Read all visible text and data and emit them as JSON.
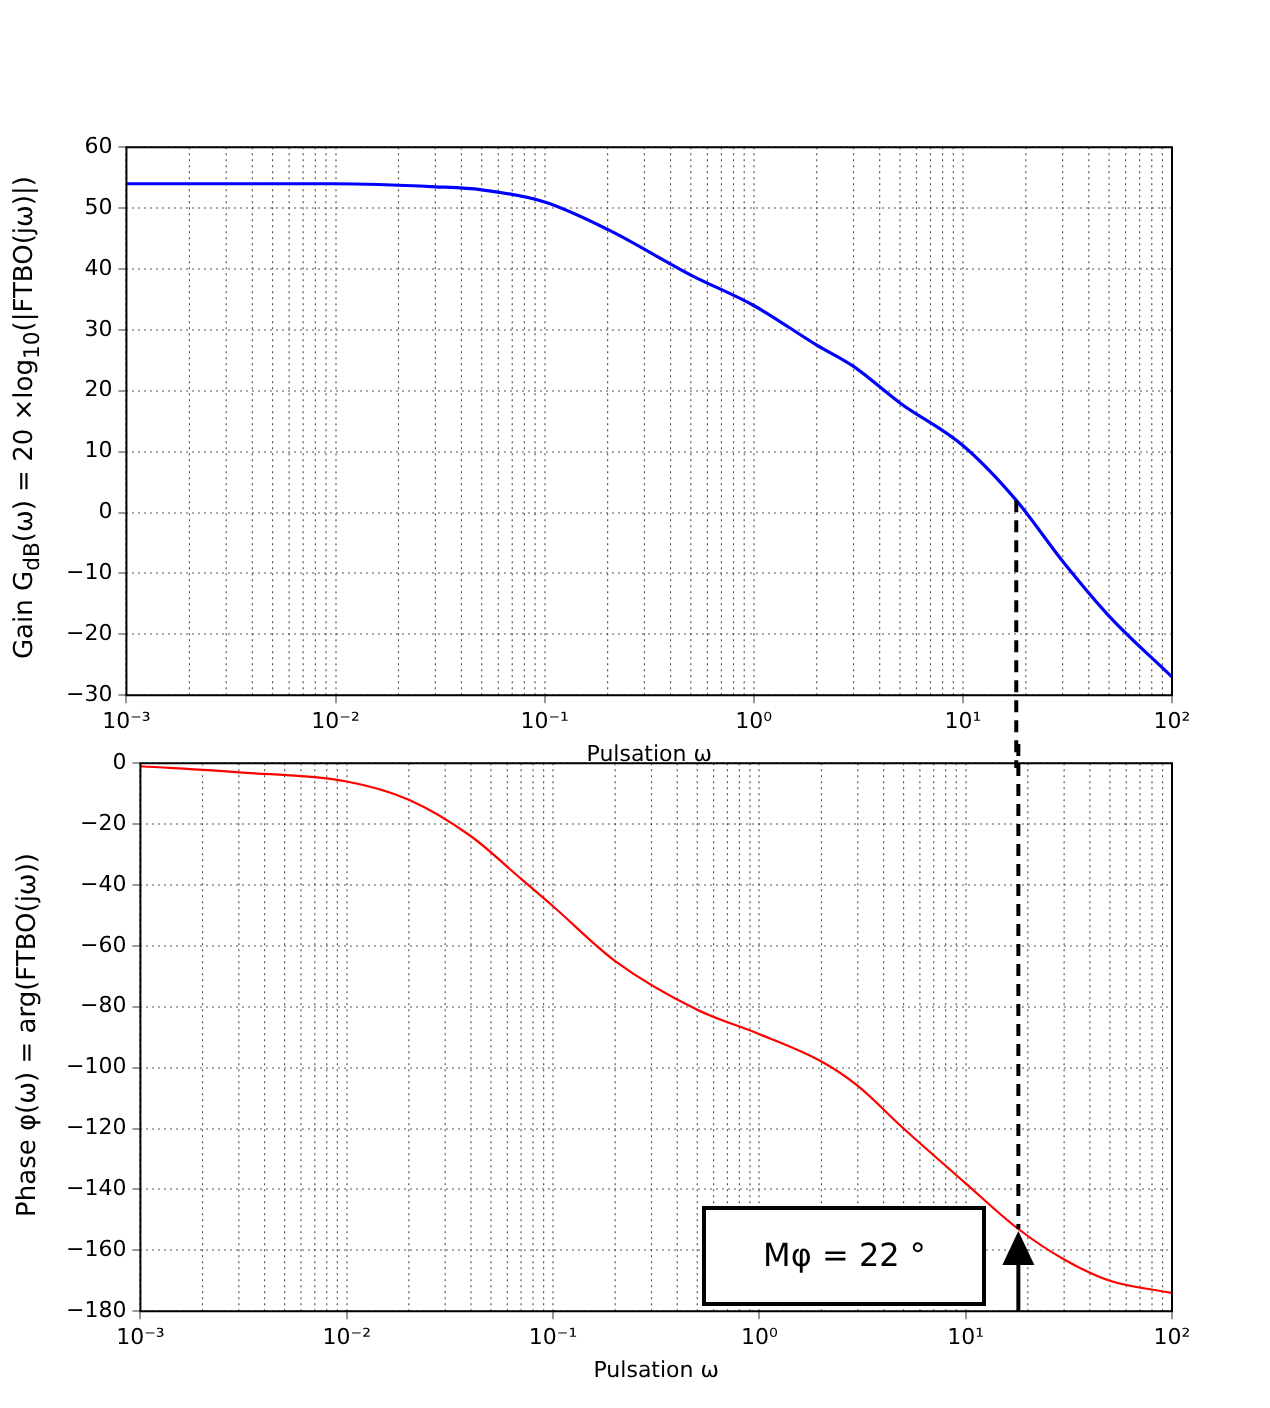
{
  "chart_data": [
    {
      "type": "line",
      "xlabel": "Pulsation ω",
      "ylabel": "Gain G$_{dB}$(ω) = 20 ×log$_{10}$(|FTBO(jω)|)",
      "log": "x",
      "grid": true,
      "x": [
        0.001,
        0.01,
        0.03,
        0.05,
        0.1,
        0.2,
        0.5,
        1,
        2,
        3,
        5,
        10,
        18,
        30,
        50,
        100
      ],
      "series": [
        {
          "color": "#0000ff",
          "values": [
            54,
            54,
            53.5,
            53,
            51,
            46.5,
            39,
            34,
            27.5,
            24,
            18,
            11,
            2,
            -8,
            -17,
            -27
          ]
        }
      ],
      "xlim": [
        0.001,
        100
      ],
      "ylim": [
        -30,
        60
      ],
      "xticks": [
        {
          "value": 0.001,
          "label": "10⁻³"
        },
        {
          "value": 0.01,
          "label": "10⁻²"
        },
        {
          "value": 0.1,
          "label": "10⁻¹"
        },
        {
          "value": 1,
          "label": "10⁰"
        },
        {
          "value": 10,
          "label": "10¹"
        },
        {
          "value": 100,
          "label": "10²"
        }
      ],
      "yticks": [
        -30,
        -20,
        -10,
        0,
        10,
        20,
        30,
        40,
        50,
        60
      ],
      "ref_lines": [
        {
          "axis": "x",
          "value": 18,
          "color": "#000000",
          "line_style": "dashed"
        }
      ]
    },
    {
      "type": "line",
      "xlabel": "Pulsation ω",
      "ylabel": "Phase φ(ω) = arg(FTBO(jω))",
      "log": "x",
      "grid": true,
      "x": [
        0.001,
        0.003,
        0.01,
        0.02,
        0.04,
        0.07,
        0.1,
        0.2,
        0.5,
        1,
        2,
        3,
        5,
        10,
        18,
        30,
        50,
        100
      ],
      "series": [
        {
          "color": "#ff0000",
          "values": [
            -1,
            -3,
            -6,
            -12,
            -24,
            -38,
            -47,
            -65,
            -81,
            -89,
            -98,
            -106,
            -120,
            -138,
            -153,
            -163,
            -170,
            -174
          ]
        }
      ],
      "xlim": [
        0.001,
        100
      ],
      "ylim": [
        -180,
        0
      ],
      "xticks": [
        {
          "value": 0.001,
          "label": "10⁻³"
        },
        {
          "value": 0.01,
          "label": "10⁻²"
        },
        {
          "value": 0.1,
          "label": "10⁻¹"
        },
        {
          "value": 1,
          "label": "10⁰"
        },
        {
          "value": 10,
          "label": "10¹"
        },
        {
          "value": 100,
          "label": "10²"
        }
      ],
      "yticks": [
        -180,
        -160,
        -140,
        -120,
        -100,
        -80,
        -60,
        -40,
        -20,
        0
      ],
      "ref_lines": [
        {
          "axis": "x",
          "value": 18,
          "color": "#000000",
          "line_style": "dashed"
        }
      ],
      "annotations": [
        "Mφ = 22 °"
      ]
    }
  ]
}
